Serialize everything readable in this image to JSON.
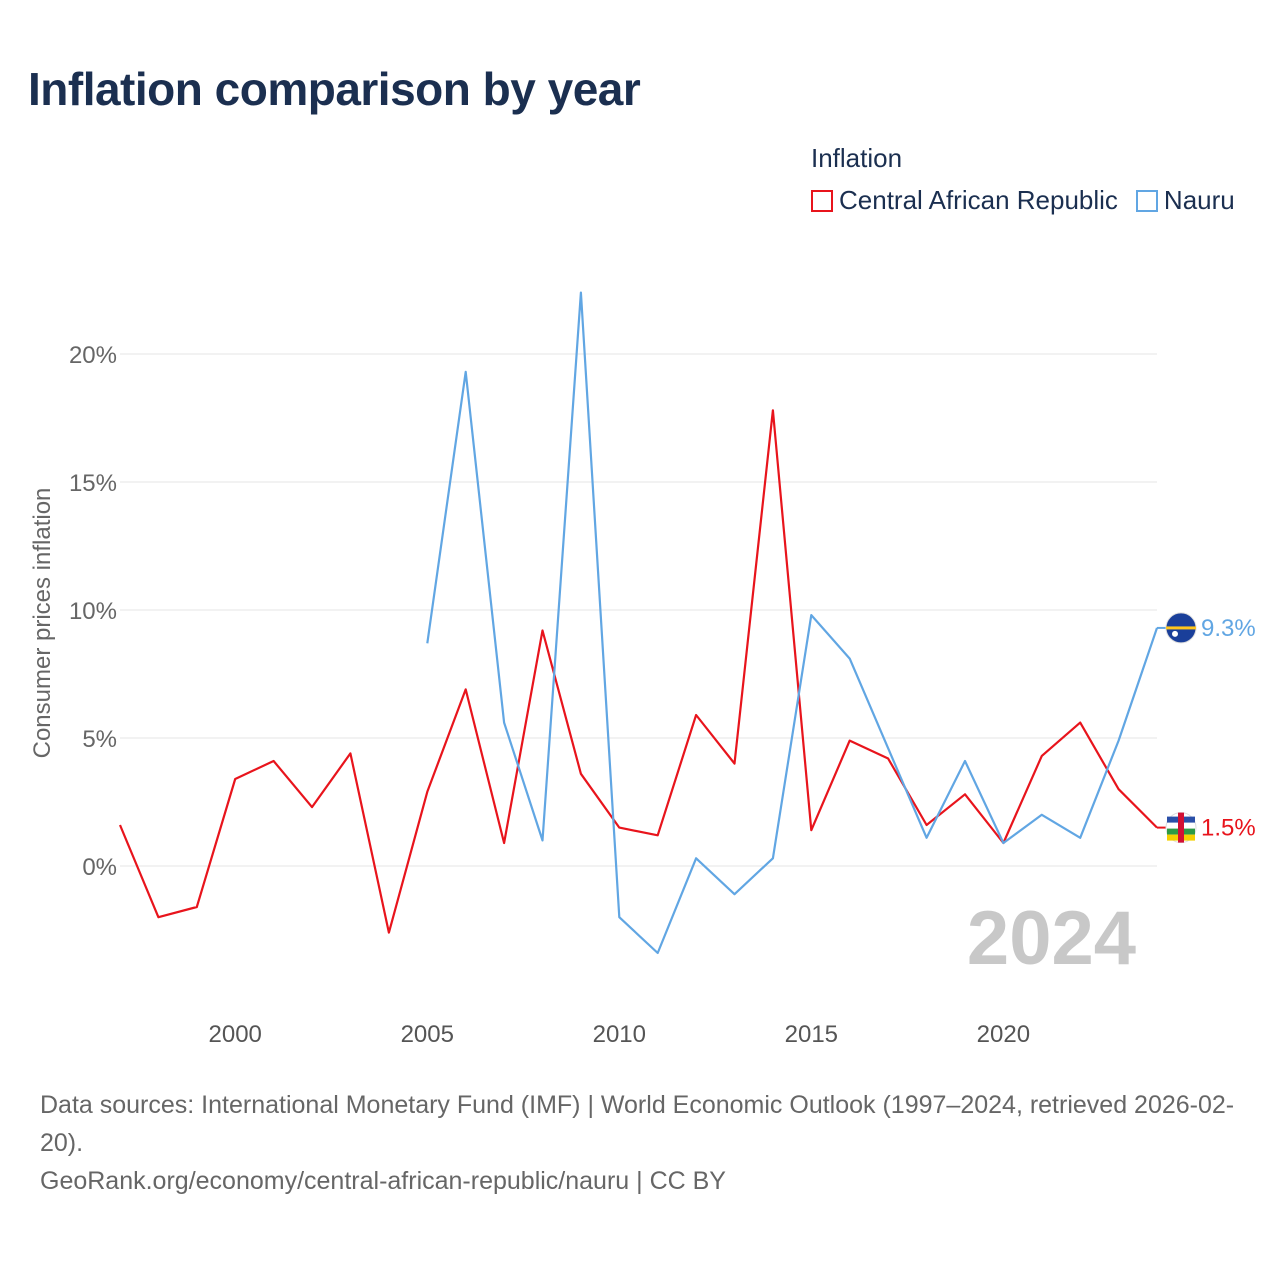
{
  "title": "Inflation comparison by year",
  "legend": {
    "title": "Inflation",
    "items": [
      {
        "label": "Central African Republic",
        "color": "#e8141c"
      },
      {
        "label": "Nauru",
        "color": "#61a6e3"
      }
    ]
  },
  "year_watermark": "2024",
  "footer": {
    "sources": "Data sources: International Monetary Fund (IMF) | World Economic Outlook (1997–2024, retrieved 2026-02-20).",
    "credit": "GeoRank.org/economy/central-african-republic/nauru | CC BY"
  },
  "chart_data": {
    "type": "line",
    "title": "Inflation comparison by year",
    "xlabel": "",
    "ylabel": "Consumer prices inflation",
    "xlim": [
      1997,
      2024
    ],
    "ylim": [
      -5,
      22
    ],
    "x_ticks": [
      2000,
      2005,
      2010,
      2015,
      2020
    ],
    "y_ticks": [
      0,
      5,
      10,
      15,
      20
    ],
    "y_tick_labels": [
      "0%",
      "5%",
      "10%",
      "15%",
      "20%"
    ],
    "grid": true,
    "legend_position": "top-right",
    "series": [
      {
        "name": "Central African Republic",
        "color": "#e8141c",
        "x": [
          1997,
          1998,
          1999,
          2000,
          2001,
          2002,
          2003,
          2004,
          2005,
          2006,
          2007,
          2008,
          2009,
          2010,
          2011,
          2012,
          2013,
          2014,
          2015,
          2016,
          2017,
          2018,
          2019,
          2020,
          2021,
          2022,
          2023,
          2024
        ],
        "values": [
          1.6,
          -2.0,
          -1.6,
          3.4,
          4.1,
          2.3,
          4.4,
          -2.6,
          2.9,
          6.9,
          0.9,
          9.2,
          3.6,
          1.5,
          1.2,
          5.9,
          4.0,
          17.8,
          1.4,
          4.9,
          4.2,
          1.6,
          2.8,
          0.9,
          4.3,
          5.6,
          3.0,
          1.5
        ],
        "end_label": "1.5%"
      },
      {
        "name": "Nauru",
        "color": "#61a6e3",
        "x": [
          2005,
          2006,
          2007,
          2008,
          2009,
          2010,
          2011,
          2012,
          2013,
          2014,
          2015,
          2016,
          2017,
          2018,
          2019,
          2020,
          2021,
          2022,
          2023,
          2024
        ],
        "values": [
          8.7,
          19.3,
          5.6,
          1.0,
          22.4,
          -2.0,
          -3.4,
          0.3,
          -1.1,
          0.3,
          9.8,
          8.1,
          4.6,
          1.1,
          4.1,
          0.9,
          2.0,
          1.1,
          4.9,
          9.3
        ],
        "end_label": "9.3%"
      }
    ]
  }
}
